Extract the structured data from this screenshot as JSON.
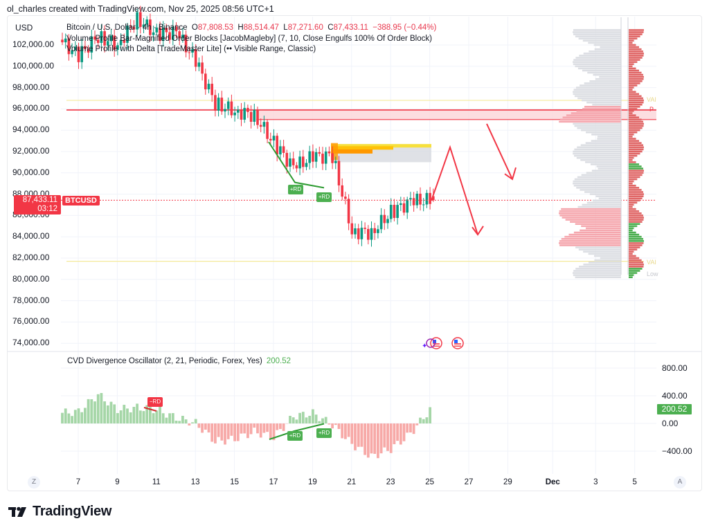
{
  "credit": "ol_charles created with TradingView.com, Nov 25, 2025 08:56 UTC+1",
  "currency": "USD",
  "legend": {
    "symbol_line": "Bitcoin / U.S. Dollar · 4h · Binance",
    "o_label": "O",
    "o_value": "87,808.53",
    "h_label": "H",
    "h_value": "88,514.47",
    "l_label": "L",
    "l_value": "87,271.60",
    "c_label": "C",
    "c_value": "87,433.11",
    "change": "−388.95 (−0.44%)",
    "indicator_1": "Volume Profile Bar-Magnified Order Blocks [JacobMagleby] (7, 10, Close Engulfs 100% Of Order Block)",
    "indicator_2": "Volume Profile with Delta [TradeMaster Lite] (•• Visible Range, Classic)"
  },
  "price_axis": [
    "102,000.00",
    "100,000.00",
    "98,000.00",
    "96,000.00",
    "94,000.00",
    "92,000.00",
    "90,000.00",
    "88,000.00",
    "86,000.00",
    "84,000.00",
    "82,000.00",
    "80,000.00",
    "78,000.00",
    "76,000.00",
    "74,000.00"
  ],
  "last_price": {
    "value": "87,433.11",
    "countdown": "03:12",
    "symbol": "BTCUSD"
  },
  "annotations": {
    "rd_price_1": "+RD",
    "rd_price_2": "+RD",
    "rd_osc_bear": "−RD",
    "rd_osc_1": "+RD",
    "rd_osc_2": "+RD",
    "vp_val_upper": "VAI",
    "vp_poc": "P",
    "vp_val_lower": "VAI",
    "vp_low": "Low"
  },
  "oscillator": {
    "title": "CVD Divergence Oscillator (2, 21, Periodic, Forex, Yes)",
    "value": "200.52",
    "axis": [
      "800.00",
      "400.00",
      "0.00",
      "−400.00"
    ],
    "tag": "200.52"
  },
  "time_axis": {
    "left_button": "Z",
    "right_button": "A",
    "labels": [
      "7",
      "9",
      "11",
      "13",
      "15",
      "17",
      "19",
      "21",
      "23",
      "25",
      "27",
      "29",
      "Dec",
      "3",
      "5"
    ]
  },
  "brand": "TradingView",
  "colors": {
    "bull": "#089981",
    "bear": "#f23645",
    "osc_pos": "#a5d6a7",
    "osc_neg": "#f7a9a7",
    "zone": "#f23645",
    "val_line": "#f5e99a",
    "ob_orange": "#ff9800",
    "ob_yellow": "#f7e03c",
    "ob_gray": "#d1d4dc"
  },
  "chart_data": [
    {
      "type": "candlestick",
      "title": "Bitcoin / U.S. Dollar · 4h · Binance",
      "ylabel": "USD",
      "ylim": [
        73000,
        103500
      ],
      "x_tick_labels": [
        "7",
        "9",
        "11",
        "13",
        "15",
        "17",
        "19",
        "21",
        "23",
        "25",
        "27",
        "29",
        "Dec",
        "3",
        "5"
      ],
      "last": {
        "open": 87808.53,
        "high": 88514.47,
        "low": 87271.6,
        "close": 87433.11,
        "change": -388.95,
        "change_pct": -0.44
      },
      "approx_path_close": [
        {
          "date": "Nov 6",
          "price": 102500
        },
        {
          "date": "Nov 7",
          "price": 101000
        },
        {
          "date": "Nov 8",
          "price": 102800
        },
        {
          "date": "Nov 9",
          "price": 102000
        },
        {
          "date": "Nov 10",
          "price": 104500
        },
        {
          "date": "Nov 11",
          "price": 103000
        },
        {
          "date": "Nov 12",
          "price": 103200
        },
        {
          "date": "Nov 13",
          "price": 100500
        },
        {
          "date": "Nov 14",
          "price": 96500
        },
        {
          "date": "Nov 15",
          "price": 95800
        },
        {
          "date": "Nov 16",
          "price": 95400
        },
        {
          "date": "Nov 17",
          "price": 92800
        },
        {
          "date": "Nov 18",
          "price": 90500
        },
        {
          "date": "Nov 19",
          "price": 91500
        },
        {
          "date": "Nov 20",
          "price": 91600
        },
        {
          "date": "Nov 21",
          "price": 84500
        },
        {
          "date": "Nov 22",
          "price": 84400
        },
        {
          "date": "Nov 23",
          "price": 86300
        },
        {
          "date": "Nov 24",
          "price": 87300
        },
        {
          "date": "Nov 25",
          "price": 87433
        }
      ],
      "zones": [
        {
          "name": "resistance zone",
          "from": 95000,
          "to": 95900,
          "color": "#f23645"
        },
        {
          "name": "VAH line",
          "price": 96800,
          "color": "#f5e99a"
        },
        {
          "name": "VAL line",
          "price": 81700,
          "color": "#f5e99a"
        },
        {
          "name": "order block",
          "from": 91000,
          "to": 92800,
          "color": "#ff9800"
        }
      ],
      "divergences": [
        {
          "label": "+RD",
          "from": "Nov 17 ~92,800",
          "to": "Nov 18 ~89,100"
        },
        {
          "label": "+RD",
          "from": "Nov 18 ~89,100",
          "to": "Nov 19 ~88,600"
        }
      ],
      "projections": [
        {
          "from": "Nov 25 87,433",
          "to": "Nov 26 ~92,300",
          "then": "Nov 27 ~84,200",
          "style": "red arrow"
        },
        {
          "from": "Nov 27 ~94,900",
          "to": "Nov 28 ~89,400",
          "style": "red arrow"
        }
      ]
    },
    {
      "type": "bar",
      "title": "CVD Divergence Oscillator (2, 21, Periodic, Forex, Yes)",
      "ylim": [
        -500,
        900
      ],
      "y_ticks": [
        800,
        400,
        0,
        -400
      ],
      "last_value": 200.52,
      "approx_values_by_day": [
        {
          "date": "Nov 6",
          "value": 150
        },
        {
          "date": "Nov 7",
          "value": 170
        },
        {
          "date": "Nov 8",
          "value": 420
        },
        {
          "date": "Nov 9",
          "value": 200
        },
        {
          "date": "Nov 10",
          "value": 230
        },
        {
          "date": "Nov 11",
          "value": 200
        },
        {
          "date": "Nov 12",
          "value": 80
        },
        {
          "date": "Nov 13",
          "value": 5
        },
        {
          "date": "Nov 14",
          "value": -260
        },
        {
          "date": "Nov 15",
          "value": -230
        },
        {
          "date": "Nov 16",
          "value": -120
        },
        {
          "date": "Nov 17",
          "value": -200
        },
        {
          "date": "Nov 18",
          "value": 100
        },
        {
          "date": "Nov 19",
          "value": 150
        },
        {
          "date": "Nov 20",
          "value": -20
        },
        {
          "date": "Nov 21",
          "value": -300
        },
        {
          "date": "Nov 22",
          "value": -480
        },
        {
          "date": "Nov 23",
          "value": -370
        },
        {
          "date": "Nov 24",
          "value": -150
        },
        {
          "date": "Nov 25",
          "value": 200
        }
      ],
      "annotations": [
        "−RD near Nov 10–11",
        "+RD near Nov 18",
        "+RD near Nov 19–20"
      ]
    }
  ]
}
